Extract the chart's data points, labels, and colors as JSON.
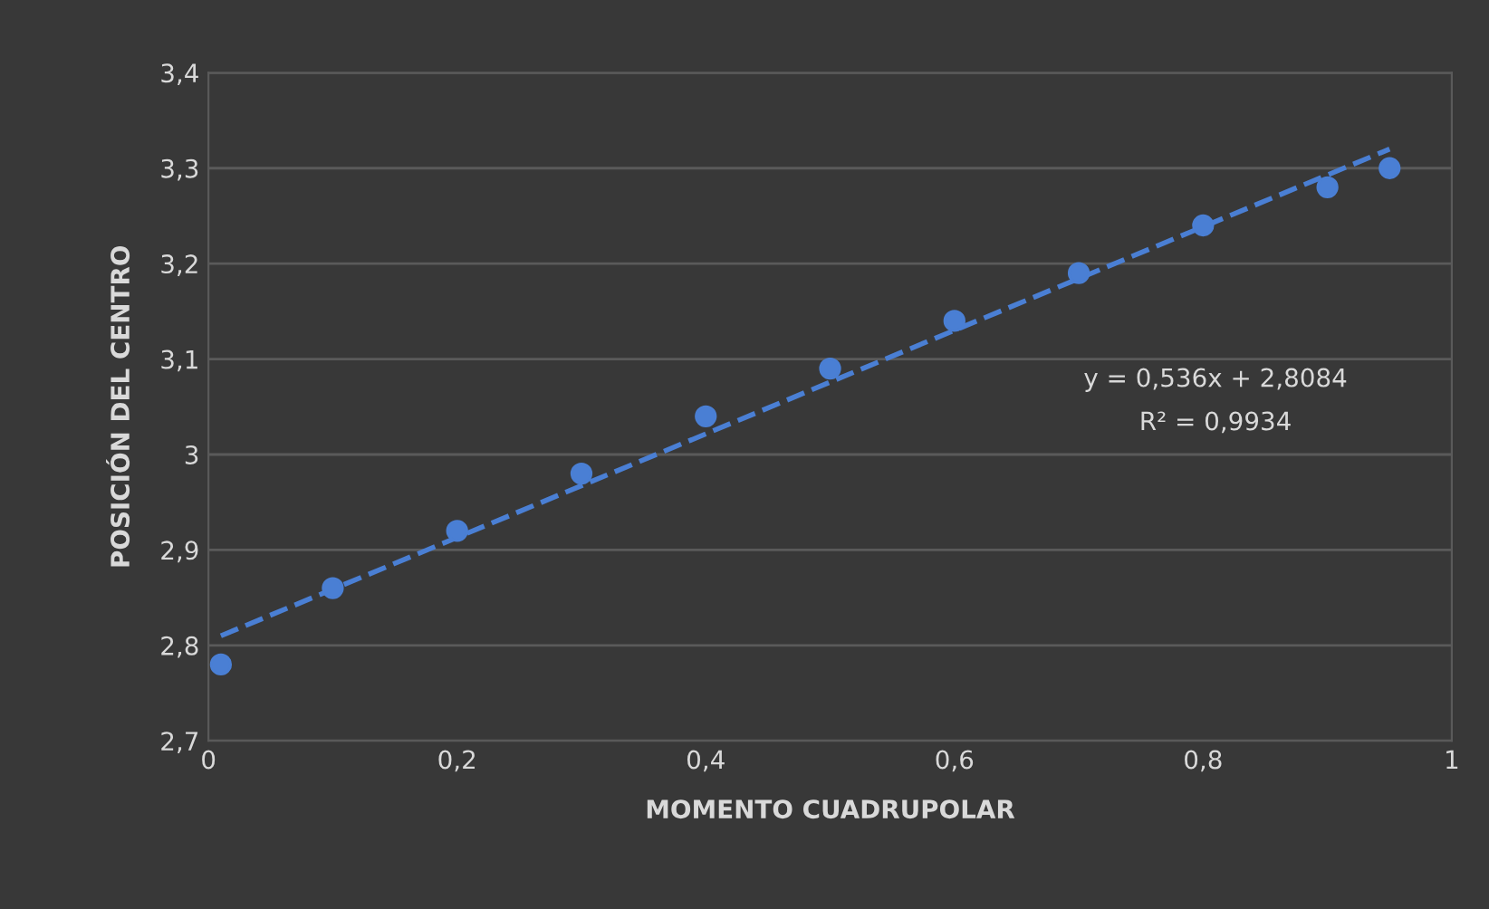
{
  "chart_data": {
    "type": "scatter",
    "xlabel": "MOMENTO CUADRUPOLAR",
    "ylabel": "POSICIÓN DEL CENTRO",
    "x": [
      0.01,
      0.1,
      0.2,
      0.3,
      0.4,
      0.5,
      0.6,
      0.7,
      0.8,
      0.9,
      0.95
    ],
    "series": [
      {
        "color": "#4a7fd4",
        "values": [
          2.78,
          2.86,
          2.92,
          2.98,
          3.04,
          3.09,
          3.14,
          3.19,
          3.24,
          3.28,
          3.3
        ],
        "marker": "circle"
      },
      {
        "type": "line",
        "color": "#4a7fd4",
        "x": [
          0.01,
          0.95
        ],
        "values": [
          2.81,
          3.32
        ],
        "line_style": "dashed"
      }
    ],
    "xlim": [
      0,
      1
    ],
    "ylim": [
      2.7,
      3.4
    ],
    "xticks": [
      0,
      {
        "value": 0.2,
        "label": "0,2"
      },
      {
        "value": 0.4,
        "label": "0,4"
      },
      {
        "value": 0.6,
        "label": "0,6"
      },
      {
        "value": 0.8,
        "label": "0,8"
      },
      1
    ],
    "yticks": [
      {
        "value": 2.7,
        "label": "2,7"
      },
      {
        "value": 2.8,
        "label": "2,8"
      },
      {
        "value": 2.9,
        "label": "2,9"
      },
      3,
      {
        "value": 3.1,
        "label": "3,1"
      },
      {
        "value": 3.2,
        "label": "3,2"
      },
      {
        "value": 3.3,
        "label": "3,3"
      },
      {
        "value": 3.4,
        "label": "3,4"
      }
    ],
    "grid": "y",
    "legend": false,
    "annotations": [
      "y = 0,536x + 2,8084",
      "R² = 0,9934"
    ]
  }
}
